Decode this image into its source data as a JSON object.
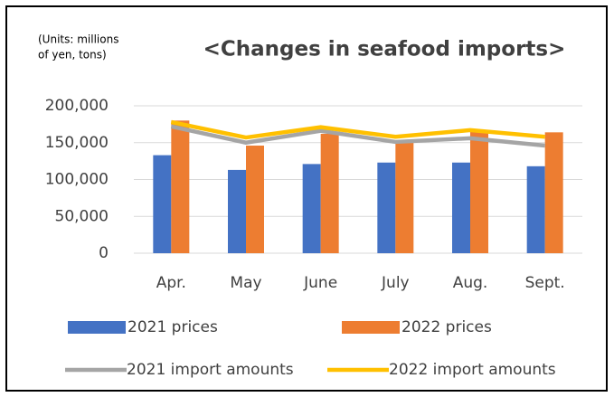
{
  "chart_data": {
    "type": "bar-line",
    "title": "<Changes in seafood imports>",
    "units_note": [
      "(Units: millions",
      "of yen, tons)"
    ],
    "categories": [
      "Apr.",
      "May",
      "June",
      "July",
      "Aug.",
      "Sept."
    ],
    "series": [
      {
        "name": "2021 prices",
        "type": "bar",
        "color": "#4472c4",
        "values": [
          133000,
          113000,
          121000,
          123000,
          123000,
          118000
        ]
      },
      {
        "name": "2022 prices",
        "type": "bar",
        "color": "#ed7d31",
        "values": [
          180000,
          146000,
          162000,
          152000,
          165000,
          164000
        ]
      },
      {
        "name": "2021 import amounts",
        "type": "line",
        "color": "#a5a5a5",
        "values": [
          172000,
          150000,
          166000,
          151000,
          156000,
          146000
        ]
      },
      {
        "name": "2022 import amounts",
        "type": "line",
        "color": "#ffc000",
        "values": [
          178000,
          157000,
          171000,
          158000,
          167000,
          158000
        ]
      }
    ],
    "ylim": [
      0,
      200000
    ],
    "yticks": [
      {
        "value": 0,
        "label": "0"
      },
      {
        "value": 50000,
        "label": "50,000"
      },
      {
        "value": 100000,
        "label": "100,000"
      },
      {
        "value": 150000,
        "label": "150,000"
      },
      {
        "value": 200000,
        "label": "200,000"
      }
    ],
    "grid": true
  }
}
